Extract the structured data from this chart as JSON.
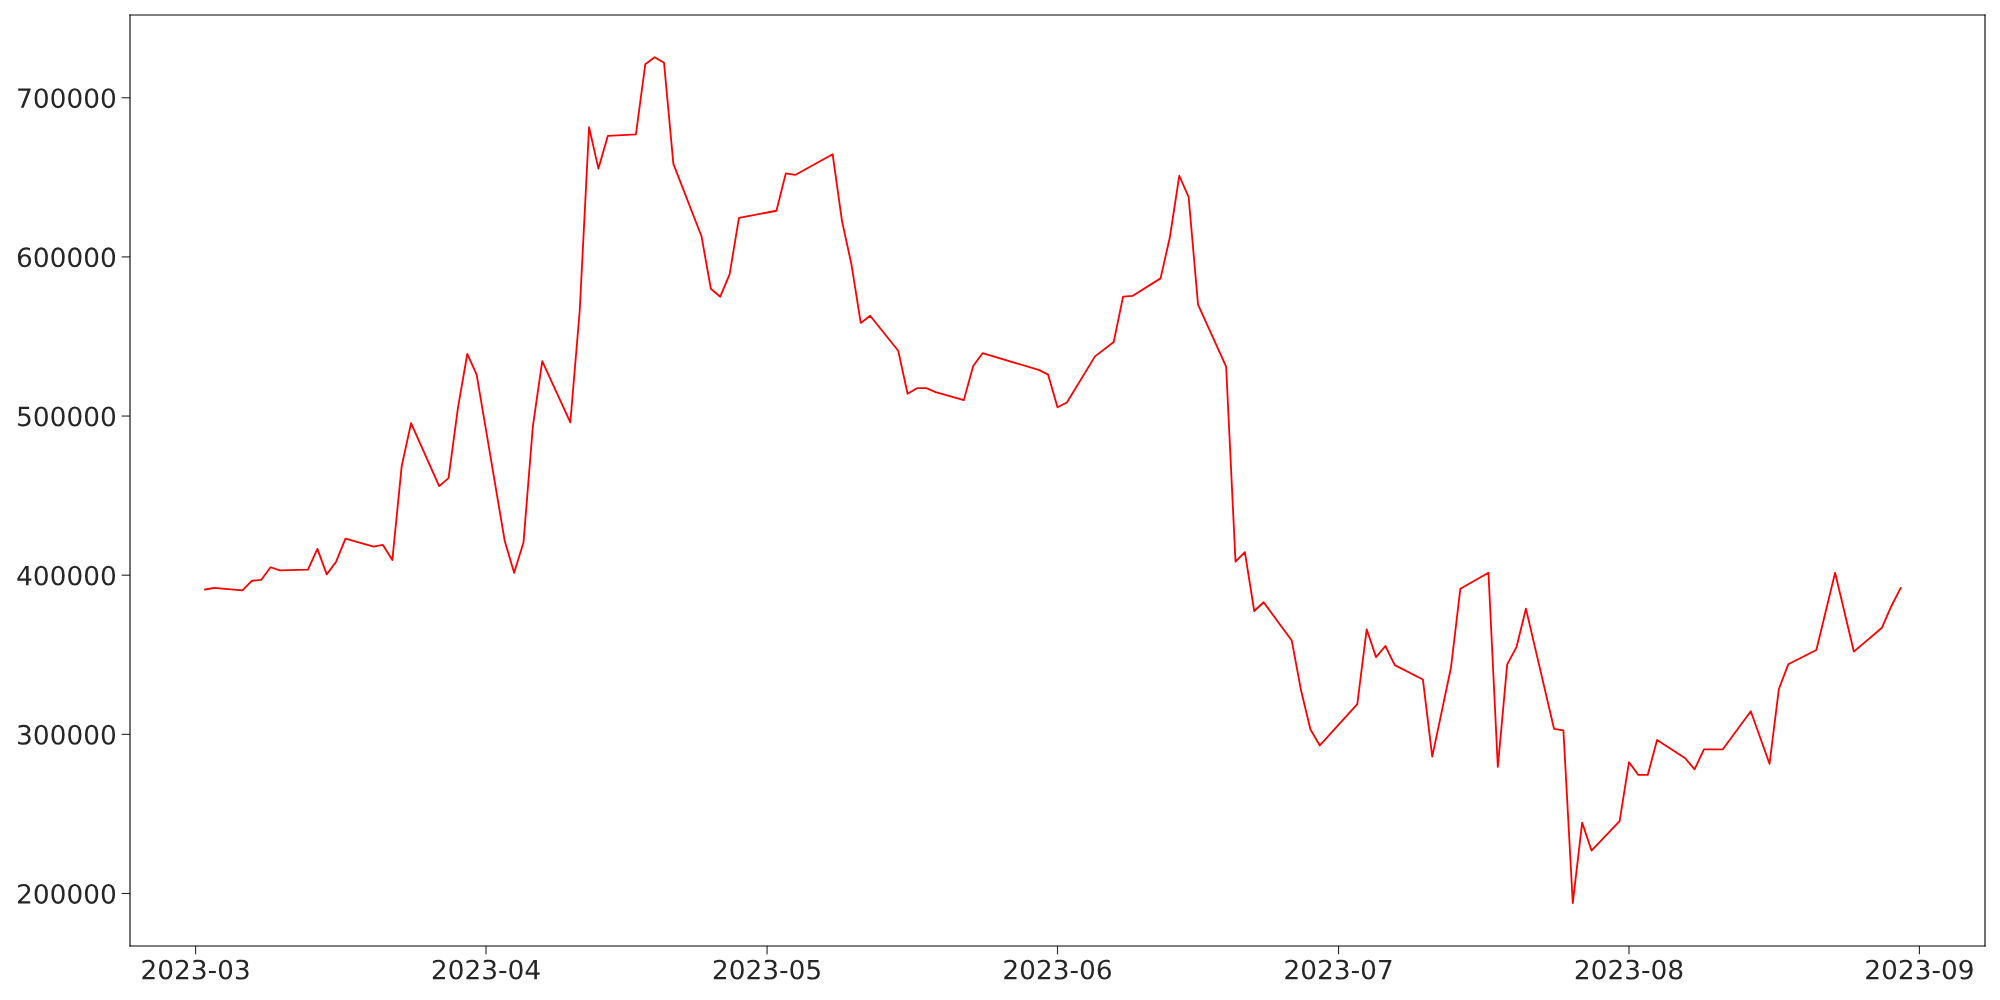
{
  "chart_data": {
    "type": "line",
    "x": [
      "2023-03-02",
      "2023-03-03",
      "2023-03-06",
      "2023-03-07",
      "2023-03-08",
      "2023-03-09",
      "2023-03-10",
      "2023-03-13",
      "2023-03-14",
      "2023-03-15",
      "2023-03-16",
      "2023-03-17",
      "2023-03-20",
      "2023-03-21",
      "2023-03-22",
      "2023-03-23",
      "2023-03-24",
      "2023-03-27",
      "2023-03-28",
      "2023-03-29",
      "2023-03-30",
      "2023-03-31",
      "2023-04-03",
      "2023-04-04",
      "2023-04-05",
      "2023-04-06",
      "2023-04-07",
      "2023-04-10",
      "2023-04-11",
      "2023-04-12",
      "2023-04-13",
      "2023-04-14",
      "2023-04-17",
      "2023-04-18",
      "2023-04-19",
      "2023-04-20",
      "2023-04-21",
      "2023-04-24",
      "2023-04-25",
      "2023-04-26",
      "2023-04-27",
      "2023-04-28",
      "2023-05-02",
      "2023-05-03",
      "2023-05-04",
      "2023-05-08",
      "2023-05-09",
      "2023-05-10",
      "2023-05-11",
      "2023-05-12",
      "2023-05-15",
      "2023-05-16",
      "2023-05-17",
      "2023-05-18",
      "2023-05-19",
      "2023-05-22",
      "2023-05-23",
      "2023-05-24",
      "2023-05-30",
      "2023-05-31",
      "2023-06-01",
      "2023-06-02",
      "2023-06-05",
      "2023-06-07",
      "2023-06-08",
      "2023-06-09",
      "2023-06-12",
      "2023-06-13",
      "2023-06-14",
      "2023-06-15",
      "2023-06-16",
      "2023-06-19",
      "2023-06-20",
      "2023-06-21",
      "2023-06-22",
      "2023-06-23",
      "2023-06-26",
      "2023-06-27",
      "2023-06-28",
      "2023-06-29",
      "2023-07-03",
      "2023-07-04",
      "2023-07-05",
      "2023-07-06",
      "2023-07-07",
      "2023-07-10",
      "2023-07-11",
      "2023-07-13",
      "2023-07-14",
      "2023-07-17",
      "2023-07-18",
      "2023-07-19",
      "2023-07-20",
      "2023-07-21",
      "2023-07-24",
      "2023-07-25",
      "2023-07-26",
      "2023-07-27",
      "2023-07-28",
      "2023-07-31",
      "2023-08-01",
      "2023-08-02",
      "2023-08-03",
      "2023-08-04",
      "2023-08-07",
      "2023-08-08",
      "2023-08-09",
      "2023-08-11",
      "2023-08-14",
      "2023-08-16",
      "2023-08-17",
      "2023-08-18",
      "2023-08-21",
      "2023-08-23",
      "2023-08-25",
      "2023-08-28",
      "2023-08-29",
      "2023-08-30"
    ],
    "series": [
      {
        "color": "#ff0000",
        "values": [
          391000,
          392000,
          390500,
          396500,
          397000,
          405000,
          403000,
          403500,
          416500,
          400500,
          408500,
          423000,
          418000,
          419000,
          409500,
          468500,
          495500,
          456000,
          461000,
          505000,
          539000,
          526000,
          421500,
          401500,
          420500,
          493500,
          534500,
          496000,
          566000,
          681500,
          655500,
          676000,
          677000,
          721000,
          725500,
          722000,
          658500,
          613000,
          580000,
          575000,
          589000,
          624500,
          629000,
          652500,
          651500,
          664500,
          622500,
          595500,
          558500,
          563000,
          541000,
          514000,
          517500,
          517500,
          515000,
          510000,
          531500,
          539500,
          529000,
          526000,
          505500,
          508500,
          537500,
          546500,
          575000,
          575500,
          586500,
          612500,
          651000,
          637500,
          570000,
          531000,
          408500,
          414500,
          377500,
          383000,
          359000,
          327500,
          303000,
          293000,
          319000,
          366000,
          348500,
          355500,
          343500,
          334500,
          286000,
          342000,
          391500,
          401500,
          279500,
          344000,
          355000,
          379000,
          303500,
          302500,
          194000,
          244500,
          227000,
          245500,
          282500,
          274500,
          274500,
          296500,
          285000,
          278000,
          290500,
          290500,
          314500,
          281500,
          328500,
          344000,
          353000,
          401500,
          352000,
          367000,
          380500,
          392000
        ]
      }
    ],
    "xlim": [
      "2023-02-22",
      "2023-09-08"
    ],
    "xticks": [
      "2023-03",
      "2023-04",
      "2023-05",
      "2023-06",
      "2023-07",
      "2023-08",
      "2023-09"
    ],
    "ylim": [
      167000,
      752000
    ],
    "yticks": [
      200000,
      300000,
      400000,
      500000,
      600000,
      700000
    ]
  }
}
